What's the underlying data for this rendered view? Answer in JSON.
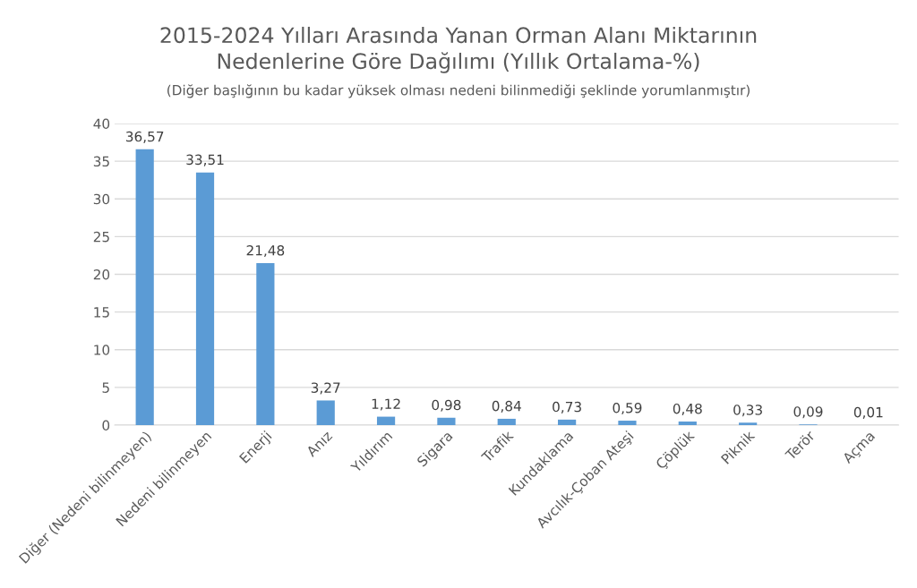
{
  "chart_data": {
    "type": "bar",
    "title": "2015-2024 Yılları Arasında Yanan Orman Alanı Miktarının\nNedenlerine Göre Dağılımı (Yıllık Ortalama-%)",
    "subtitle": "(Diğer başlığının bu kadar yüksek olması nedeni bilinmediği şeklinde yorumlanmıştır)",
    "categories": [
      "Diğer (Nedeni bilinmeyen)",
      "Nedeni bilinmeyen",
      "Enerji",
      "Anız",
      "Yıldırım",
      "Sigara",
      "Trafik",
      "Kundaklama",
      "Avcılık-Çoban Ateşi",
      "Çöplük",
      "Piknik",
      "Terör",
      "Açma"
    ],
    "values": [
      36.57,
      33.51,
      21.48,
      3.27,
      1.12,
      0.98,
      0.84,
      0.73,
      0.59,
      0.48,
      0.33,
      0.09,
      0.01
    ],
    "value_labels": [
      "36,57",
      "33,51",
      "21,48",
      "3,27",
      "1,12",
      "0,98",
      "0,84",
      "0,73",
      "0,59",
      "0,48",
      "0,33",
      "0,09",
      "0,01"
    ],
    "color": "#5b9bd5",
    "ylim": [
      0,
      40
    ],
    "yticks": [
      0,
      5,
      10,
      15,
      20,
      25,
      30,
      35,
      40
    ],
    "grid": "y"
  }
}
